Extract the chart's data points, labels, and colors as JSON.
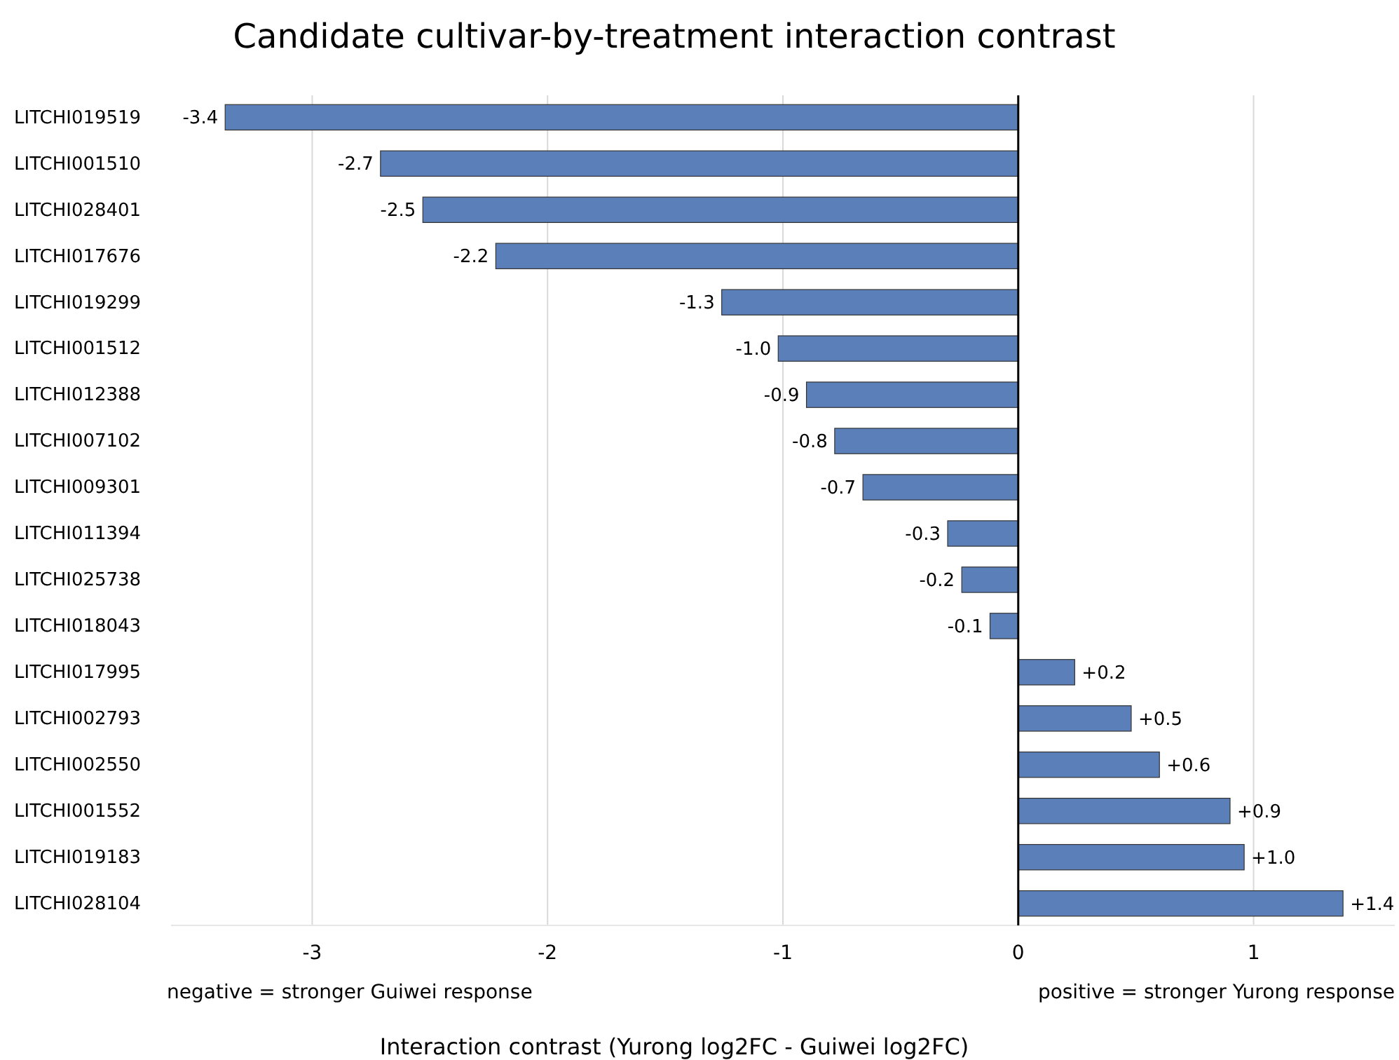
{
  "chart_data": {
    "type": "bar",
    "orientation": "horizontal",
    "title": "Candidate cultivar-by-treatment interaction contrast",
    "xlabel": "Interaction contrast (Yurong log2FC - Guiwei log2FC)",
    "categories": [
      "LITCHI019519",
      "LITCHI001510",
      "LITCHI028401",
      "LITCHI017676",
      "LITCHI019299",
      "LITCHI001512",
      "LITCHI012388",
      "LITCHI007102",
      "LITCHI009301",
      "LITCHI011394",
      "LITCHI025738",
      "LITCHI018043",
      "LITCHI017995",
      "LITCHI002793",
      "LITCHI002550",
      "LITCHI001552",
      "LITCHI019183",
      "LITCHI028104"
    ],
    "values": [
      -3.37,
      -2.71,
      -2.53,
      -2.22,
      -1.26,
      -1.02,
      -0.9,
      -0.78,
      -0.66,
      -0.3,
      -0.24,
      -0.12,
      0.24,
      0.48,
      0.6,
      0.9,
      0.96,
      1.38
    ],
    "value_labels": [
      "-3.4",
      "-2.7",
      "-2.5",
      "-2.2",
      "-1.3",
      "-1.0",
      "-0.9",
      "-0.8",
      "-0.7",
      "-0.3",
      "-0.2",
      "-0.1",
      "+0.2",
      "+0.5",
      "+0.6",
      "+0.9",
      "+1.0",
      "+1.4"
    ],
    "color": "#5b7fb8",
    "xlim": [
      -3.6,
      1.6
    ],
    "xticks": [
      -3,
      -2,
      -1,
      0,
      1
    ],
    "grid": "x",
    "ref_lines": [
      {
        "axis": "x",
        "value": 0,
        "color": "#000000"
      }
    ],
    "annotations": [
      "negative = stronger Guiwei response",
      "positive = stronger Yurong response"
    ]
  }
}
